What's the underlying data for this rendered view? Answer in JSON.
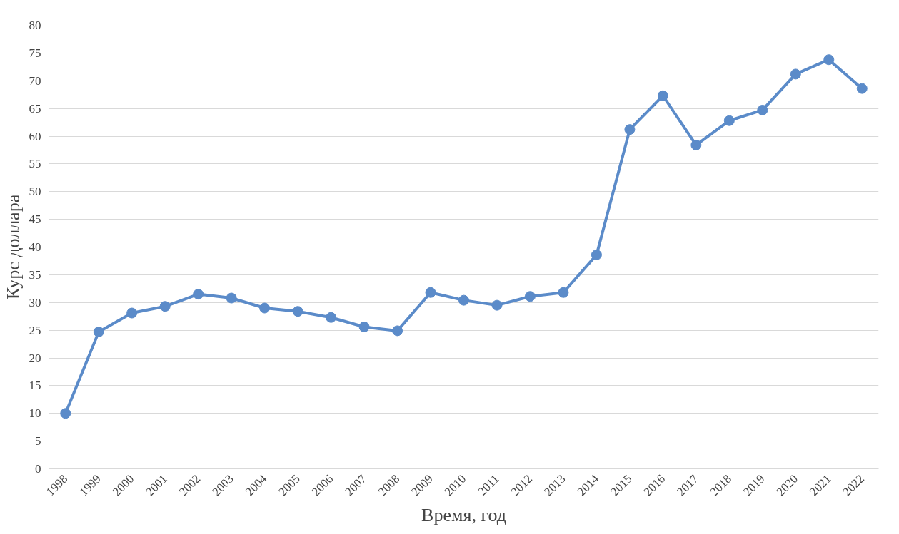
{
  "chart_data": {
    "type": "line",
    "xlabel": "Время, год",
    "ylabel": "Курс доллара",
    "categories": [
      "1998",
      "1999",
      "2000",
      "2001",
      "2002",
      "2003",
      "2004",
      "2005",
      "2006",
      "2007",
      "2008",
      "2009",
      "2010",
      "2011",
      "2012",
      "2013",
      "2014",
      "2015",
      "2016",
      "2017",
      "2018",
      "2019",
      "2020",
      "2021",
      "2022"
    ],
    "series": [
      {
        "color": "#5b8bc9",
        "values": [
          10,
          24.7,
          28.1,
          29.3,
          31.5,
          30.8,
          29.0,
          28.4,
          27.3,
          25.6,
          24.9,
          31.8,
          30.4,
          29.5,
          31.1,
          31.8,
          38.6,
          61.2,
          67.3,
          58.4,
          62.8,
          64.7,
          71.2,
          73.8,
          68.6
        ]
      }
    ],
    "ylim": [
      0,
      80
    ],
    "yticks": [
      0,
      5,
      10,
      15,
      20,
      25,
      30,
      35,
      40,
      45,
      50,
      55,
      60,
      65,
      70,
      75,
      80
    ],
    "grid": "y",
    "marker": "circle",
    "line_style": "solid"
  }
}
